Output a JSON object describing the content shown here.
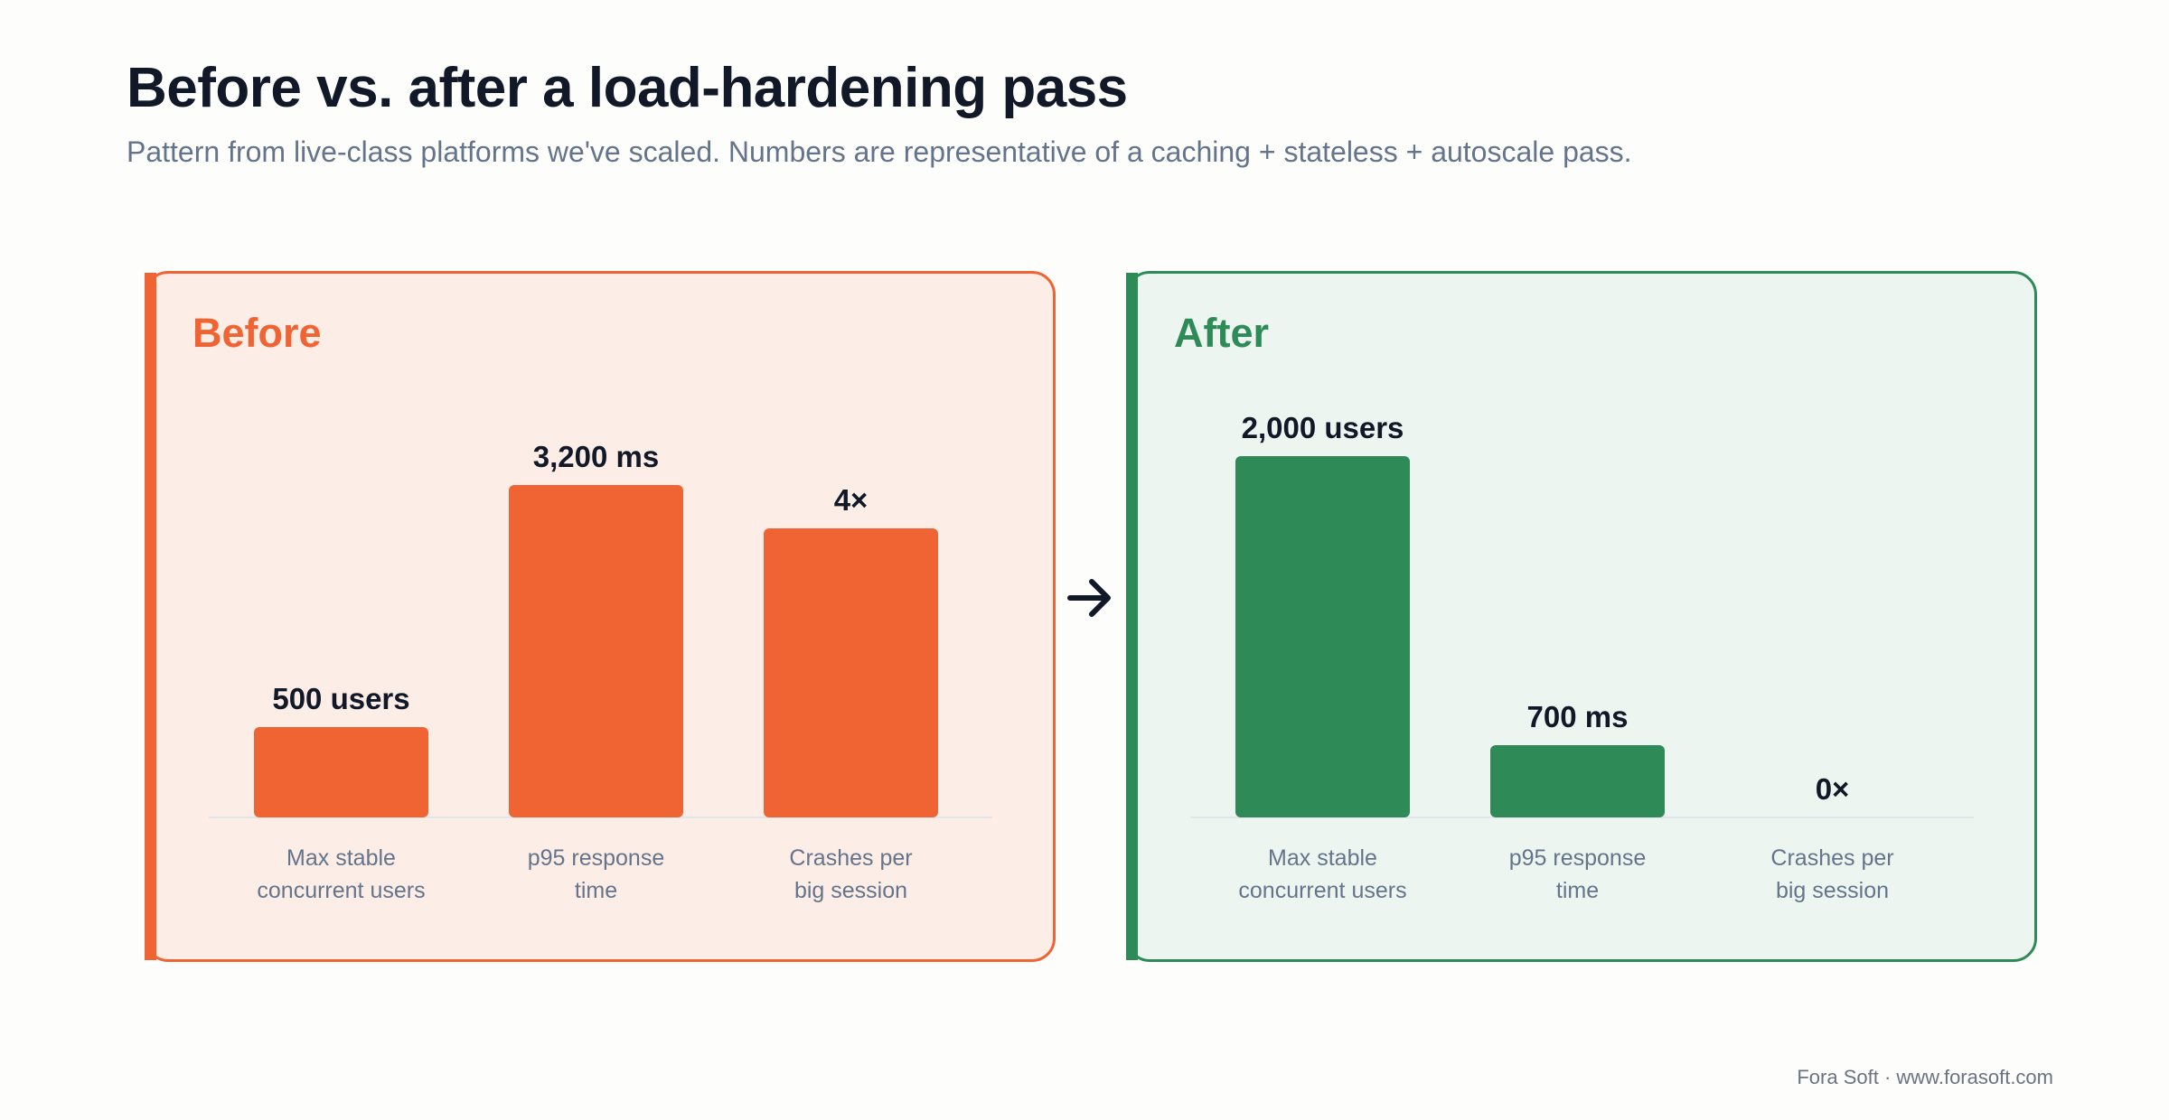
{
  "header": {
    "title": "Before vs. after a load-hardening pass",
    "subtitle": "Pattern from live-class platforms we've scaled. Numbers are representative of a caching + stateless + autoscale pass."
  },
  "colors": {
    "before_accent": "#f06332",
    "before_bg": "#fcede6",
    "after_accent": "#2e8b58",
    "after_bg": "#edf5f0",
    "value_text": "#111827",
    "category_text": "#64748b"
  },
  "icons": {
    "transition": "arrow-right-icon"
  },
  "chart_data": [
    {
      "type": "bar",
      "title": "Before",
      "categories": [
        [
          "Max stable",
          "concurrent users"
        ],
        [
          "p95 response",
          "time"
        ],
        [
          "Crashes per",
          "big session"
        ]
      ],
      "values": [
        500,
        3200,
        4
      ],
      "value_labels": [
        "500 users",
        "3,200 ms",
        "4×"
      ],
      "relative_heights": [
        0.25,
        0.92,
        0.8
      ]
    },
    {
      "type": "bar",
      "title": "After",
      "categories": [
        [
          "Max stable",
          "concurrent users"
        ],
        [
          "p95 response",
          "time"
        ],
        [
          "Crashes per",
          "big session"
        ]
      ],
      "values": [
        2000,
        700,
        0
      ],
      "value_labels": [
        "2,000 users",
        "700 ms",
        "0×"
      ],
      "relative_heights": [
        1.0,
        0.2,
        0
      ]
    }
  ],
  "footer": {
    "credit": "Fora Soft · www.forasoft.com"
  }
}
